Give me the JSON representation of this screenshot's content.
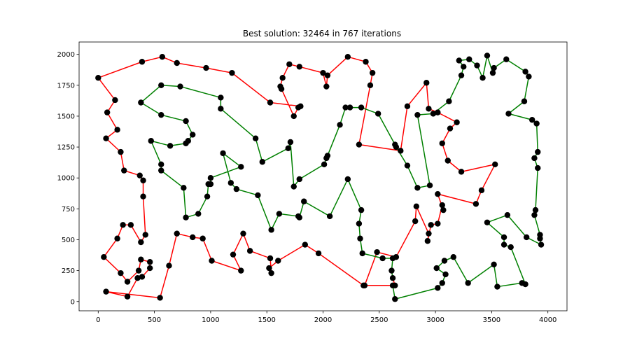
{
  "chart_data": {
    "type": "line",
    "title": "Best solution: 32464 in 767 iterations",
    "xlabel": "",
    "ylabel": "",
    "xlim": [
      -170,
      4170
    ],
    "ylim": [
      -75,
      2100
    ],
    "xticks": [
      0,
      500,
      1000,
      1500,
      2000,
      2500,
      3000,
      3500,
      4000
    ],
    "yticks": [
      0,
      250,
      500,
      750,
      1000,
      1250,
      1500,
      1750,
      2000
    ],
    "grid": false,
    "colors": {
      "segment_a": "#ff0000",
      "segment_b": "#008000",
      "points": "#000000",
      "axes": "#000000"
    },
    "series": [
      {
        "color": "red",
        "points": [
          [
            2620,
            130
          ],
          [
            2370,
            130
          ],
          [
            2480,
            400
          ],
          [
            2650,
            360
          ],
          [
            2820,
            650
          ],
          [
            2830,
            770
          ],
          [
            2940,
            550
          ],
          [
            2930,
            490
          ],
          [
            2960,
            620
          ],
          [
            3020,
            630
          ],
          [
            3060,
            780
          ],
          [
            3070,
            740
          ],
          [
            3020,
            870
          ],
          [
            3360,
            790
          ],
          [
            3410,
            900
          ],
          [
            3530,
            1110
          ],
          [
            3230,
            1050
          ],
          [
            3110,
            1140
          ],
          [
            3060,
            1280
          ],
          [
            3130,
            1400
          ],
          [
            3190,
            1450
          ],
          [
            3020,
            1530
          ],
          [
            2940,
            1560
          ],
          [
            2920,
            1770
          ],
          [
            2750,
            1580
          ],
          [
            2690,
            1220
          ],
          [
            2320,
            1270
          ],
          [
            2420,
            1750
          ],
          [
            2440,
            1850
          ],
          [
            2380,
            1940
          ],
          [
            2220,
            1980
          ],
          [
            2040,
            1830
          ],
          [
            2030,
            1740
          ],
          [
            2000,
            1850
          ],
          [
            1790,
            1900
          ],
          [
            1700,
            1920
          ],
          [
            1640,
            1810
          ],
          [
            1620,
            1740
          ],
          [
            1630,
            1720
          ],
          [
            1740,
            1500
          ],
          [
            1780,
            1570
          ],
          [
            1800,
            1580
          ],
          [
            1530,
            1610
          ],
          [
            1190,
            1850
          ],
          [
            960,
            1890
          ],
          [
            700,
            1930
          ],
          [
            570,
            1980
          ],
          [
            390,
            1940
          ],
          [
            0,
            1810
          ],
          [
            150,
            1630
          ],
          [
            80,
            1530
          ],
          [
            170,
            1390
          ],
          [
            70,
            1320
          ],
          [
            200,
            1210
          ],
          [
            230,
            1060
          ],
          [
            370,
            1020
          ],
          [
            400,
            980
          ],
          [
            400,
            850
          ],
          [
            420,
            540
          ],
          [
            380,
            480
          ],
          [
            290,
            620
          ],
          [
            220,
            620
          ],
          [
            170,
            510
          ],
          [
            50,
            360
          ],
          [
            200,
            230
          ],
          [
            260,
            160
          ],
          [
            360,
            250
          ],
          [
            380,
            340
          ],
          [
            460,
            320
          ],
          [
            460,
            270
          ],
          [
            390,
            200
          ],
          [
            350,
            190
          ],
          [
            260,
            40
          ],
          [
            70,
            80
          ],
          [
            550,
            30
          ],
          [
            630,
            290
          ],
          [
            700,
            550
          ],
          [
            840,
            520
          ],
          [
            930,
            510
          ],
          [
            1010,
            330
          ],
          [
            1270,
            250
          ],
          [
            1200,
            380
          ],
          [
            1290,
            550
          ],
          [
            1350,
            410
          ],
          [
            1530,
            350
          ],
          [
            1540,
            230
          ],
          [
            1520,
            270
          ],
          [
            1600,
            330
          ],
          [
            1840,
            460
          ],
          [
            1960,
            390
          ],
          [
            2360,
            130
          ],
          [
            2620,
            130
          ],
          [
            2640,
            130
          ],
          [
            2620,
            190
          ]
        ]
      },
      {
        "color": "green",
        "points": [
          [
            2620,
            190
          ],
          [
            2610,
            250
          ],
          [
            2620,
            350
          ],
          [
            2530,
            350
          ],
          [
            2350,
            390
          ],
          [
            2330,
            510
          ],
          [
            2320,
            630
          ],
          [
            2340,
            740
          ],
          [
            2220,
            990
          ],
          [
            2060,
            690
          ],
          [
            1830,
            810
          ],
          [
            1790,
            680
          ],
          [
            1780,
            690
          ],
          [
            1610,
            710
          ],
          [
            1540,
            580
          ],
          [
            1420,
            860
          ],
          [
            1230,
            910
          ],
          [
            1180,
            960
          ],
          [
            1110,
            1200
          ],
          [
            1270,
            1090
          ],
          [
            1000,
            1000
          ],
          [
            1000,
            950
          ],
          [
            980,
            950
          ],
          [
            970,
            850
          ],
          [
            890,
            710
          ],
          [
            780,
            680
          ],
          [
            760,
            920
          ],
          [
            560,
            1060
          ],
          [
            560,
            1110
          ],
          [
            470,
            1300
          ],
          [
            640,
            1260
          ],
          [
            780,
            1280
          ],
          [
            800,
            1300
          ],
          [
            840,
            1350
          ],
          [
            780,
            1460
          ],
          [
            560,
            1510
          ],
          [
            380,
            1610
          ],
          [
            560,
            1750
          ],
          [
            730,
            1740
          ],
          [
            1090,
            1650
          ],
          [
            1090,
            1560
          ],
          [
            1400,
            1320
          ],
          [
            1460,
            1130
          ],
          [
            1690,
            1240
          ],
          [
            1710,
            1290
          ],
          [
            1740,
            930
          ],
          [
            1790,
            990
          ],
          [
            2010,
            1110
          ],
          [
            2030,
            1160
          ],
          [
            2040,
            1180
          ],
          [
            2150,
            1430
          ],
          [
            2200,
            1570
          ],
          [
            2240,
            1570
          ],
          [
            2340,
            1570
          ],
          [
            2490,
            1520
          ],
          [
            2640,
            1270
          ],
          [
            2650,
            1250
          ],
          [
            2750,
            1100
          ],
          [
            2840,
            920
          ],
          [
            2950,
            940
          ],
          [
            2840,
            1510
          ],
          [
            2980,
            1520
          ],
          [
            3120,
            1620
          ],
          [
            3230,
            1830
          ],
          [
            3250,
            1900
          ],
          [
            3210,
            1950
          ],
          [
            3300,
            1960
          ],
          [
            3370,
            1910
          ],
          [
            3420,
            1810
          ],
          [
            3460,
            1990
          ],
          [
            3510,
            1850
          ],
          [
            3520,
            1890
          ],
          [
            3630,
            1960
          ],
          [
            3800,
            1860
          ],
          [
            3830,
            1820
          ],
          [
            3790,
            1620
          ],
          [
            3650,
            1520
          ],
          [
            3860,
            1470
          ],
          [
            3900,
            1440
          ],
          [
            3910,
            1210
          ],
          [
            3880,
            1160
          ],
          [
            3910,
            1080
          ],
          [
            3890,
            740
          ],
          [
            3880,
            700
          ],
          [
            3930,
            540
          ],
          [
            3930,
            510
          ],
          [
            3940,
            460
          ],
          [
            3810,
            520
          ],
          [
            3640,
            700
          ],
          [
            3460,
            640
          ],
          [
            3610,
            520
          ],
          [
            3610,
            460
          ],
          [
            3670,
            440
          ],
          [
            3800,
            140
          ],
          [
            3770,
            150
          ],
          [
            3550,
            120
          ],
          [
            3520,
            300
          ],
          [
            3290,
            150
          ],
          [
            3160,
            360
          ],
          [
            3080,
            330
          ],
          [
            3010,
            270
          ],
          [
            3090,
            220
          ],
          [
            3060,
            150
          ],
          [
            3020,
            110
          ],
          [
            2640,
            20
          ],
          [
            2620,
            130
          ]
        ]
      }
    ]
  }
}
